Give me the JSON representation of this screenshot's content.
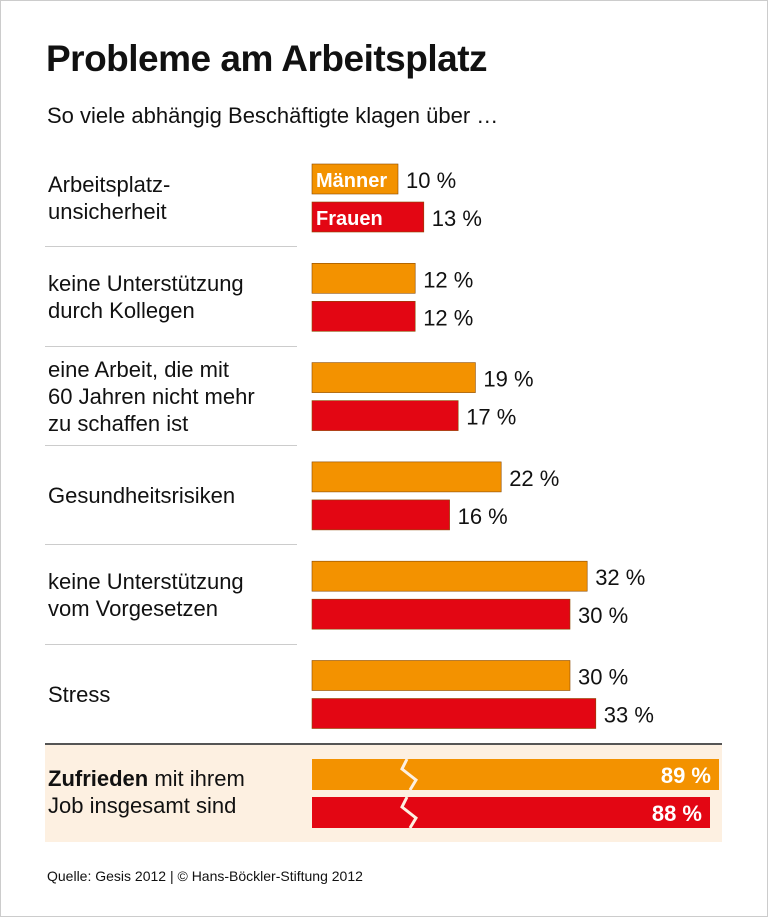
{
  "title": "Probleme am Arbeitsplatz",
  "subtitle": "So viele abhängig Beschäftigte klagen über …",
  "source": "Quelle: Gesis 2012 | © Hans-Böckler-Stiftung 2012",
  "bottom": {
    "bold": "Zufrieden",
    "rest": " mit ihrem\nJob insgesamt sind"
  },
  "colors": {
    "maenner": "#f39200",
    "frauen": "#e30613",
    "bottom_bg": "#fdf0e1"
  },
  "chart_data": {
    "type": "bar",
    "orientation": "horizontal",
    "unit": "%",
    "categories": [
      "Arbeitsplatz-\nunsicherheit",
      "keine Unterstützung\ndurch Kollegen",
      "eine Arbeit, die mit\n60 Jahren nicht mehr\nzu schaffen ist",
      "Gesundheitsrisiken",
      "keine Unterstützung\nvom Vorgesetzen",
      "Stress"
    ],
    "series": [
      {
        "name": "Männer",
        "color": "#f39200",
        "values": [
          10,
          12,
          19,
          22,
          32,
          30
        ]
      },
      {
        "name": "Frauen",
        "color": "#e30613",
        "values": [
          13,
          12,
          17,
          16,
          30,
          33
        ]
      }
    ],
    "summary": {
      "category": "Zufrieden mit ihrem Job insgesamt sind",
      "values": [
        89,
        88
      ],
      "broken_axis": true
    }
  }
}
